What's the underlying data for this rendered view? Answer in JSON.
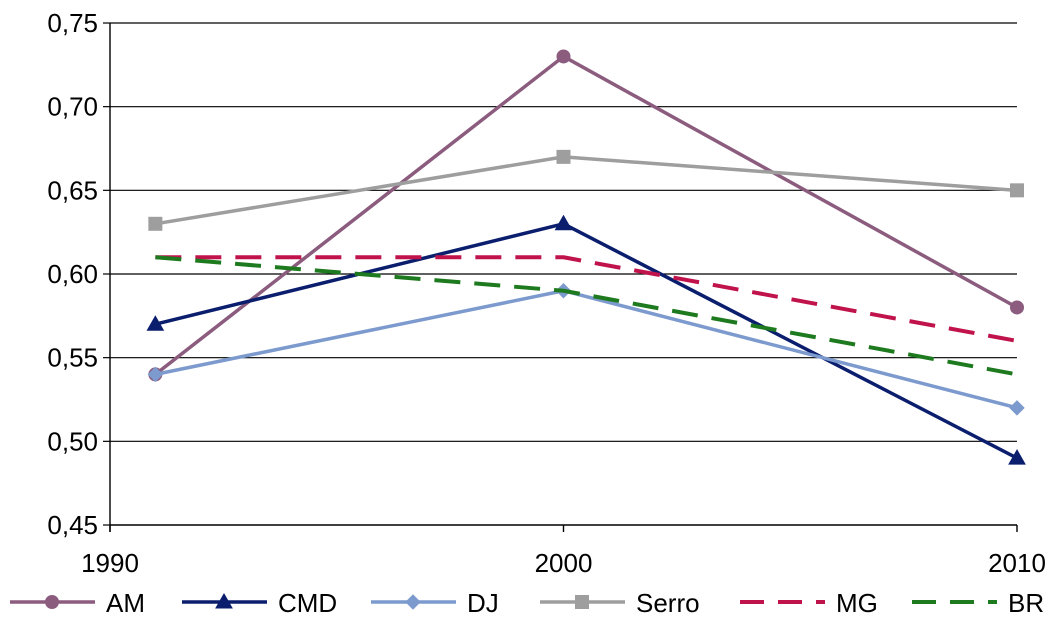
{
  "chart_data": {
    "type": "line",
    "title": "",
    "xlabel": "",
    "ylabel": "",
    "x": [
      1991,
      2000,
      2010
    ],
    "x_ticks": [
      1990,
      2000,
      2010
    ],
    "x_tick_labels": [
      "1990",
      "2000",
      "2010"
    ],
    "ylim": [
      0.45,
      0.75
    ],
    "y_ticks": [
      0.45,
      0.5,
      0.55,
      0.6,
      0.65,
      0.7,
      0.75
    ],
    "y_tick_labels": [
      "0,45",
      "0,50",
      "0,55",
      "0,60",
      "0,65",
      "0,70",
      "0,75"
    ],
    "grid": "horizontal",
    "legend_position": "bottom",
    "series": [
      {
        "name": "AM",
        "values": [
          0.54,
          0.73,
          0.58
        ],
        "color": "#8B5C7E",
        "marker": "circle",
        "dash": "solid"
      },
      {
        "name": "CMD",
        "values": [
          0.57,
          0.63,
          0.49
        ],
        "color": "#0B1E6E",
        "marker": "triangle",
        "dash": "solid"
      },
      {
        "name": "DJ",
        "values": [
          0.54,
          0.59,
          0.52
        ],
        "color": "#7C9ACD",
        "marker": "diamond",
        "dash": "solid"
      },
      {
        "name": "Serro",
        "values": [
          0.63,
          0.67,
          0.65
        ],
        "color": "#9E9E9E",
        "marker": "square",
        "dash": "solid"
      },
      {
        "name": "MG",
        "values": [
          0.61,
          0.61,
          0.56
        ],
        "color": "#C0134B",
        "marker": "none",
        "dash": "dashed"
      },
      {
        "name": "BR",
        "values": [
          0.61,
          0.59,
          0.54
        ],
        "color": "#1E7A1E",
        "marker": "none",
        "dash": "dashed"
      }
    ]
  }
}
